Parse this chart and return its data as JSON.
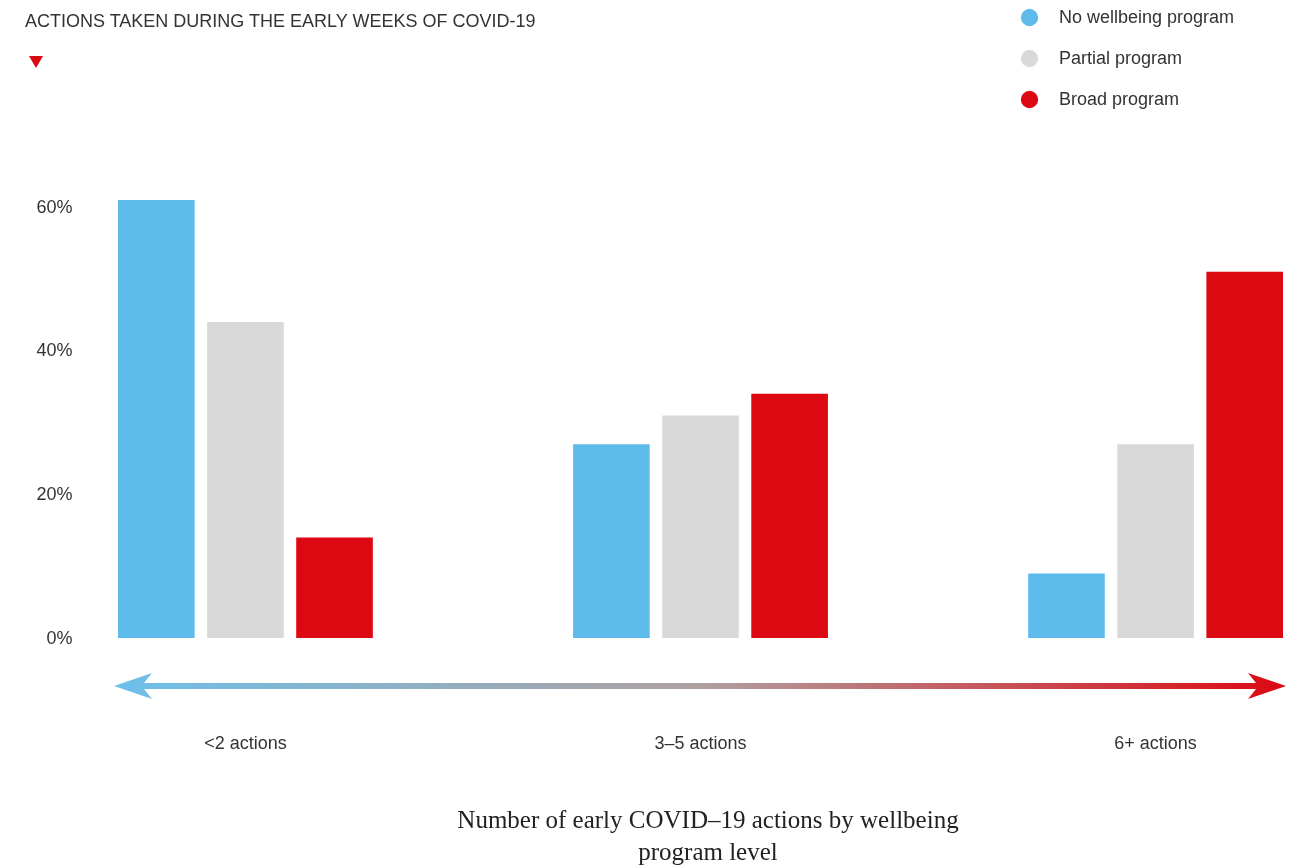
{
  "chart_data": {
    "type": "bar",
    "title": "ACTIONS TAKEN DURING THE EARLY WEEKS OF COVID-19",
    "xlabel": "Number of early COVID–19 actions by wellbeing program level",
    "categories": [
      "<2 actions",
      "3–5 actions",
      "6+ actions"
    ],
    "series": [
      {
        "name": "No wellbeing program",
        "color": "#5dbbeb",
        "values": [
          61,
          27,
          9
        ]
      },
      {
        "name": "Partial program",
        "color": "#d9d9d9",
        "values": [
          44,
          31,
          27
        ]
      },
      {
        "name": "Broad program",
        "color": "#dc0812",
        "values": [
          14,
          34,
          51
        ]
      }
    ],
    "ylim": [
      0,
      61
    ],
    "yticks": [
      {
        "value": 0,
        "label": "0%"
      },
      {
        "value": 20,
        "label": "20%"
      },
      {
        "value": 40,
        "label": "40%"
      },
      {
        "value": 60,
        "label": "60%"
      }
    ],
    "grid": false,
    "legend": "top right"
  }
}
